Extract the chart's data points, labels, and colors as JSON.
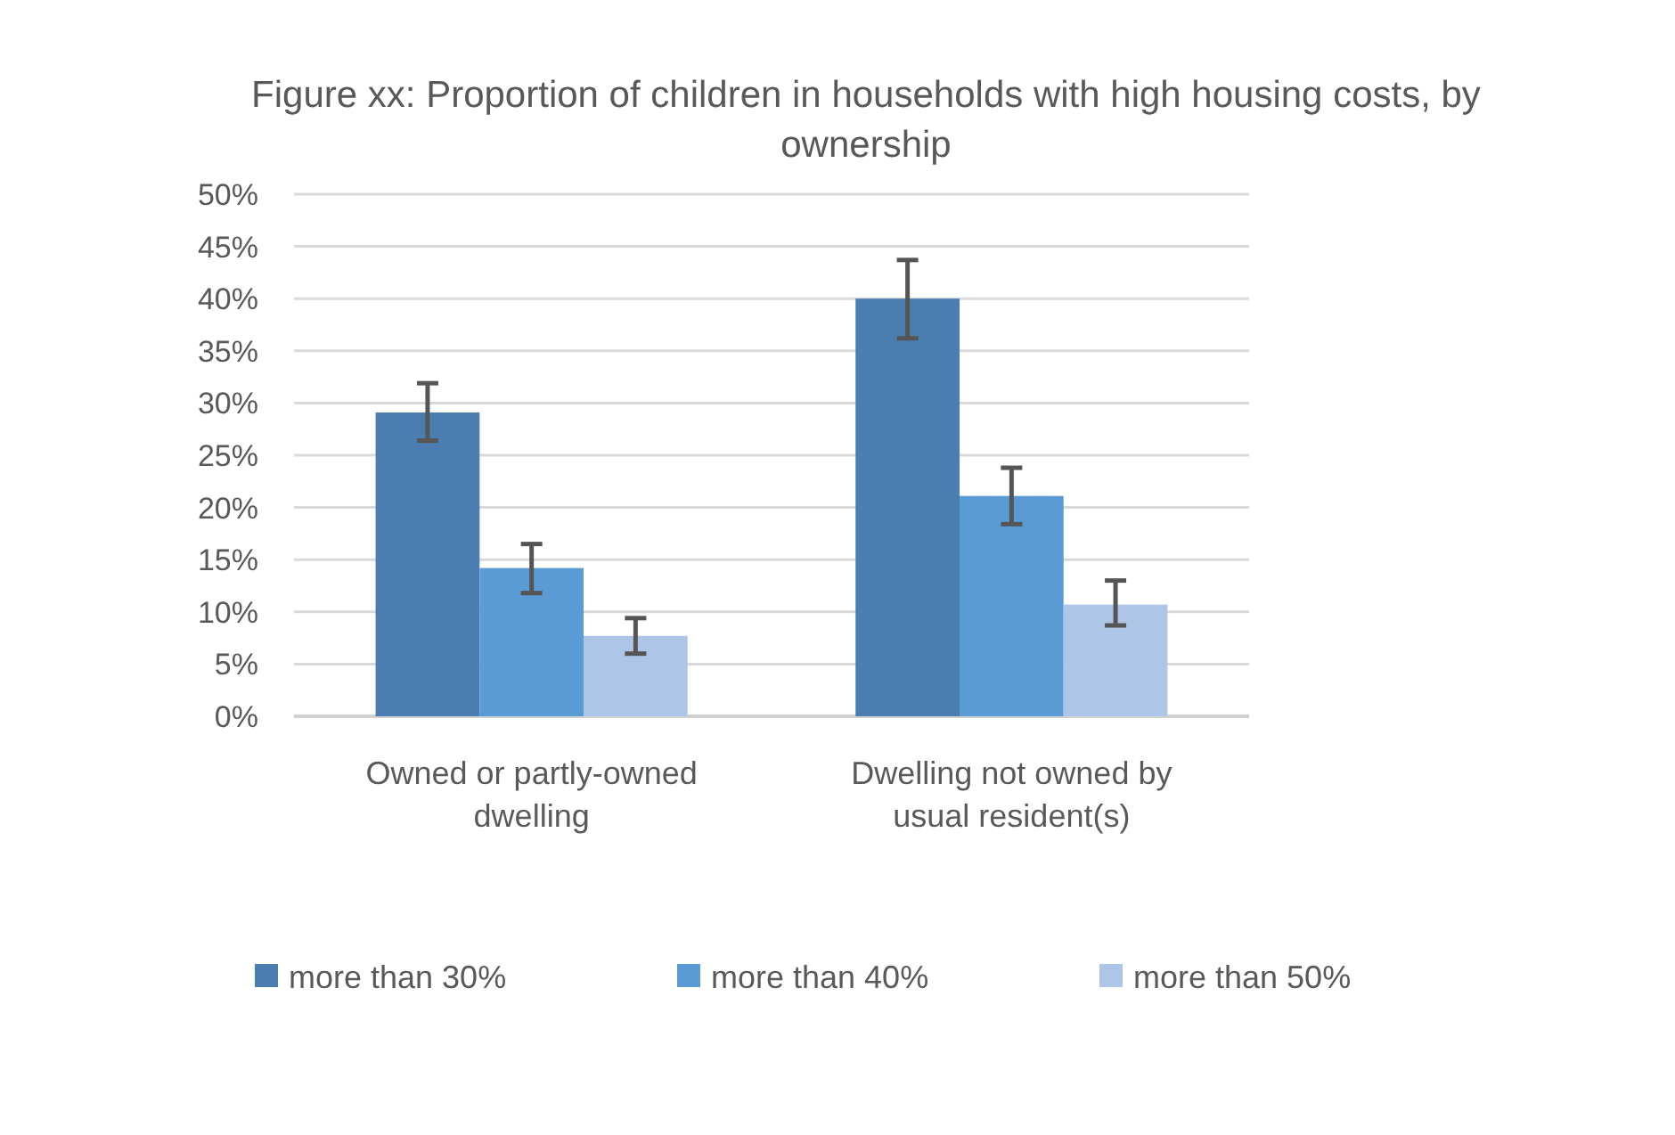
{
  "chart_data": {
    "type": "bar",
    "title": "Figure xx: Proportion of children in households with high housing costs, by ownership",
    "categories": [
      "Owned or partly-owned dwelling",
      "Dwelling not owned by usual resident(s)"
    ],
    "series": [
      {
        "name": "more than 30%",
        "color": "#4a7eb0",
        "values": [
          29.1,
          40.0
        ],
        "errors": [
          [
            26.4,
            31.9
          ],
          [
            36.2,
            43.7
          ]
        ]
      },
      {
        "name": "more than 40%",
        "color": "#5b9bd5",
        "values": [
          14.2,
          21.1
        ],
        "errors": [
          [
            11.8,
            16.5
          ],
          [
            18.4,
            23.8
          ]
        ]
      },
      {
        "name": "more than 50%",
        "color": "#adc5e6",
        "values": [
          7.7,
          10.7
        ],
        "errors": [
          [
            6.0,
            9.4
          ],
          [
            8.7,
            13.0
          ]
        ]
      }
    ],
    "ylim": [
      0,
      50
    ],
    "yticks": [
      {
        "value": 0,
        "label": "0%"
      },
      {
        "value": 5,
        "label": "5%"
      },
      {
        "value": 10,
        "label": "10%"
      },
      {
        "value": 15,
        "label": "15%"
      },
      {
        "value": 20,
        "label": "20%"
      },
      {
        "value": 25,
        "label": "25%"
      },
      {
        "value": 30,
        "label": "30%"
      },
      {
        "value": 35,
        "label": "35%"
      },
      {
        "value": 40,
        "label": "40%"
      },
      {
        "value": 45,
        "label": "45%"
      },
      {
        "value": 50,
        "label": "50%"
      }
    ],
    "grid": "y",
    "legend": "bottom"
  }
}
